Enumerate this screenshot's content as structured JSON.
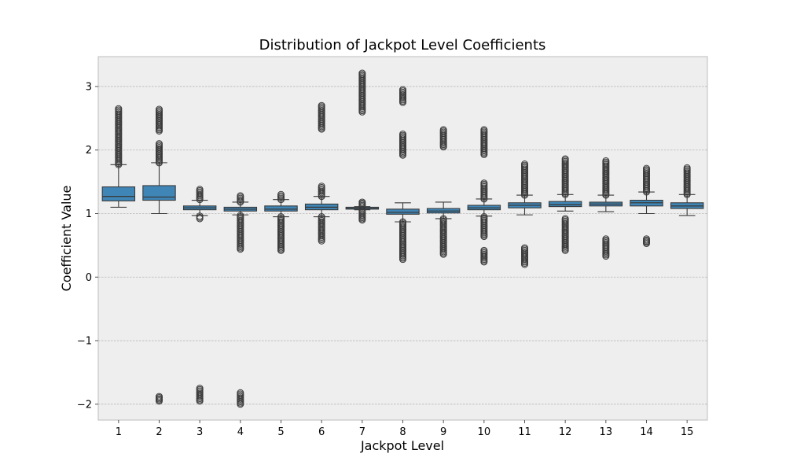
{
  "chart_data": {
    "type": "box",
    "title": "Distribution of Jackpot Level Coefficients",
    "xlabel": "Jackpot Level",
    "ylabel": "Coefficient Value",
    "categories": [
      "1",
      "2",
      "3",
      "4",
      "5",
      "6",
      "7",
      "8",
      "9",
      "10",
      "11",
      "12",
      "13",
      "14",
      "15"
    ],
    "yticks": [
      -2,
      -1,
      0,
      1,
      2,
      3
    ],
    "ytick_labels": [
      "−2",
      "−1",
      "0",
      "1",
      "2",
      "3"
    ],
    "ylim": [
      -2.25,
      3.47
    ],
    "grid": true,
    "colors": {
      "box": "#3f86b7",
      "edge": "#3a3a3a",
      "background": "#eeeeee",
      "grid": "#b8b8b8",
      "frame": "#bcbcbc"
    },
    "boxes": [
      {
        "category": "1",
        "whisker_low": 1.1,
        "q1": 1.2,
        "median": 1.27,
        "q3": 1.42,
        "whisker_high": 1.77,
        "outliers": [
          [
            1.77,
            2.65
          ]
        ]
      },
      {
        "category": "2",
        "whisker_low": 1.0,
        "q1": 1.21,
        "median": 1.26,
        "q3": 1.44,
        "whisker_high": 1.8,
        "outliers": [
          [
            1.8,
            2.1
          ],
          [
            2.3,
            2.64
          ],
          [
            -1.95,
            -1.88
          ]
        ]
      },
      {
        "category": "3",
        "whisker_low": 0.97,
        "q1": 1.06,
        "median": 1.09,
        "q3": 1.12,
        "whisker_high": 1.21,
        "outliers": [
          [
            1.22,
            1.38
          ],
          [
            0.92,
            0.96
          ],
          [
            -1.95,
            -1.75
          ]
        ]
      },
      {
        "category": "4",
        "whisker_low": 0.98,
        "q1": 1.04,
        "median": 1.07,
        "q3": 1.1,
        "whisker_high": 1.18,
        "outliers": [
          [
            1.18,
            1.28
          ],
          [
            0.44,
            0.97
          ],
          [
            -2.0,
            -1.82
          ]
        ]
      },
      {
        "category": "5",
        "whisker_low": 0.95,
        "q1": 1.04,
        "median": 1.07,
        "q3": 1.12,
        "whisker_high": 1.22,
        "outliers": [
          [
            1.22,
            1.3
          ],
          [
            0.42,
            0.95
          ]
        ]
      },
      {
        "category": "6",
        "whisker_low": 0.95,
        "q1": 1.06,
        "median": 1.1,
        "q3": 1.15,
        "whisker_high": 1.27,
        "outliers": [
          [
            1.27,
            1.43
          ],
          [
            2.33,
            2.7
          ],
          [
            0.57,
            0.95
          ]
        ]
      },
      {
        "category": "7",
        "whisker_low": 1.06,
        "q1": 1.07,
        "median": 1.08,
        "q3": 1.1,
        "whisker_high": 1.11,
        "outliers": [
          [
            1.11,
            1.18
          ],
          [
            0.9,
            1.05
          ],
          [
            2.6,
            3.21
          ]
        ]
      },
      {
        "category": "8",
        "whisker_low": 0.87,
        "q1": 0.99,
        "median": 1.02,
        "q3": 1.07,
        "whisker_high": 1.17,
        "outliers": [
          [
            0.28,
            0.87
          ],
          [
            1.92,
            2.25
          ],
          [
            2.75,
            2.95
          ]
        ]
      },
      {
        "category": "9",
        "whisker_low": 0.92,
        "q1": 1.01,
        "median": 1.04,
        "q3": 1.08,
        "whisker_high": 1.18,
        "outliers": [
          [
            0.36,
            0.92
          ],
          [
            2.05,
            2.32
          ]
        ]
      },
      {
        "category": "10",
        "whisker_low": 0.96,
        "q1": 1.06,
        "median": 1.09,
        "q3": 1.13,
        "whisker_high": 1.23,
        "outliers": [
          [
            1.23,
            1.48
          ],
          [
            0.64,
            0.95
          ],
          [
            0.24,
            0.42
          ],
          [
            1.93,
            2.32
          ]
        ]
      },
      {
        "category": "11",
        "whisker_low": 0.98,
        "q1": 1.09,
        "median": 1.13,
        "q3": 1.17,
        "whisker_high": 1.29,
        "outliers": [
          [
            1.29,
            1.78
          ],
          [
            0.2,
            0.46
          ]
        ]
      },
      {
        "category": "12",
        "whisker_low": 1.04,
        "q1": 1.11,
        "median": 1.14,
        "q3": 1.19,
        "whisker_high": 1.3,
        "outliers": [
          [
            1.3,
            1.86
          ],
          [
            0.42,
            0.92
          ]
        ]
      },
      {
        "category": "13",
        "whisker_low": 1.03,
        "q1": 1.12,
        "median": 1.15,
        "q3": 1.18,
        "whisker_high": 1.29,
        "outliers": [
          [
            1.29,
            1.83
          ],
          [
            0.33,
            0.6
          ]
        ]
      },
      {
        "category": "14",
        "whisker_low": 1.0,
        "q1": 1.12,
        "median": 1.17,
        "q3": 1.21,
        "whisker_high": 1.34,
        "outliers": [
          [
            1.34,
            1.71
          ],
          [
            0.53,
            0.6
          ]
        ]
      },
      {
        "category": "15",
        "whisker_low": 0.97,
        "q1": 1.08,
        "median": 1.12,
        "q3": 1.17,
        "whisker_high": 1.3,
        "outliers": [
          [
            1.3,
            1.72
          ]
        ]
      }
    ]
  }
}
